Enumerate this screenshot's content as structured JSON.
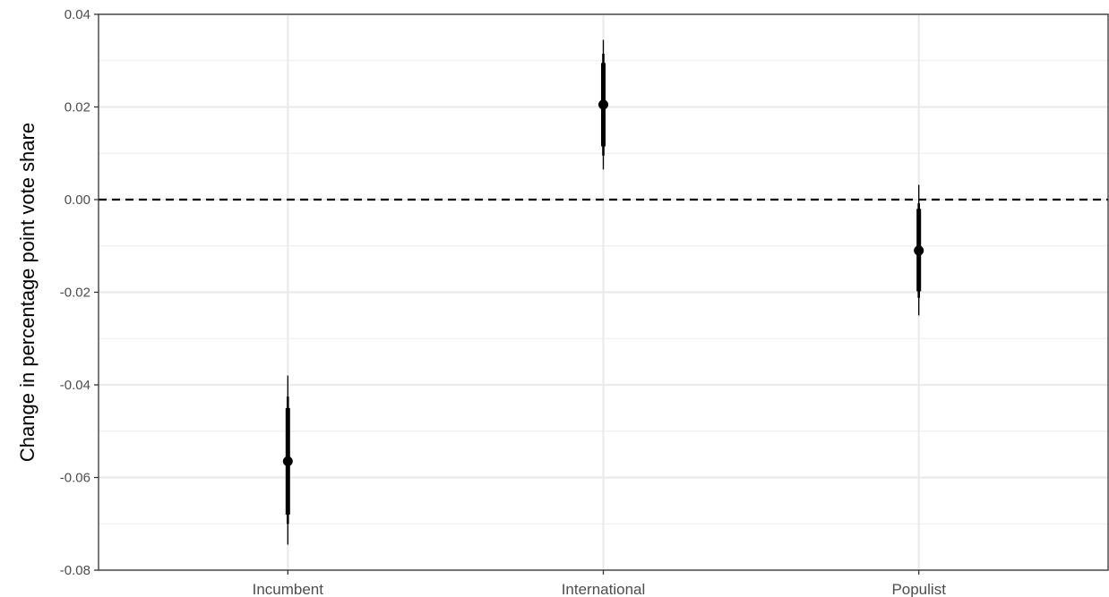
{
  "chart_data": {
    "type": "pointrange",
    "title": "",
    "xlabel": "",
    "ylabel": "Change in percentage point vote share",
    "ylim": [
      -0.08,
      0.04
    ],
    "y_ticks": [
      0.04,
      0.02,
      0.0,
      -0.02,
      -0.04,
      -0.06,
      -0.08
    ],
    "y_tick_labels": [
      "0.04",
      "0.02",
      "0.00",
      "-0.02",
      "-0.04",
      "-0.06",
      "-0.08"
    ],
    "categories": [
      "Incumbent",
      "International",
      "Populist"
    ],
    "estimates": [
      -0.0565,
      0.0205,
      -0.011
    ],
    "ci_inner": [
      [
        -0.068,
        -0.045
      ],
      [
        0.0115,
        0.0295
      ],
      [
        -0.0198,
        -0.002
      ]
    ],
    "ci_mid": [
      [
        -0.07,
        -0.0425
      ],
      [
        0.0095,
        0.0315
      ],
      [
        -0.0212,
        -0.0008
      ]
    ],
    "ci_outer": [
      [
        -0.0745,
        -0.038
      ],
      [
        0.0065,
        0.0345
      ],
      [
        -0.025,
        0.0032
      ]
    ],
    "reference_line": 0.0,
    "grid": true,
    "colors": {
      "point": "#000000",
      "grid": "#ebebeb",
      "border": "#333333",
      "reference": "#000000"
    }
  }
}
